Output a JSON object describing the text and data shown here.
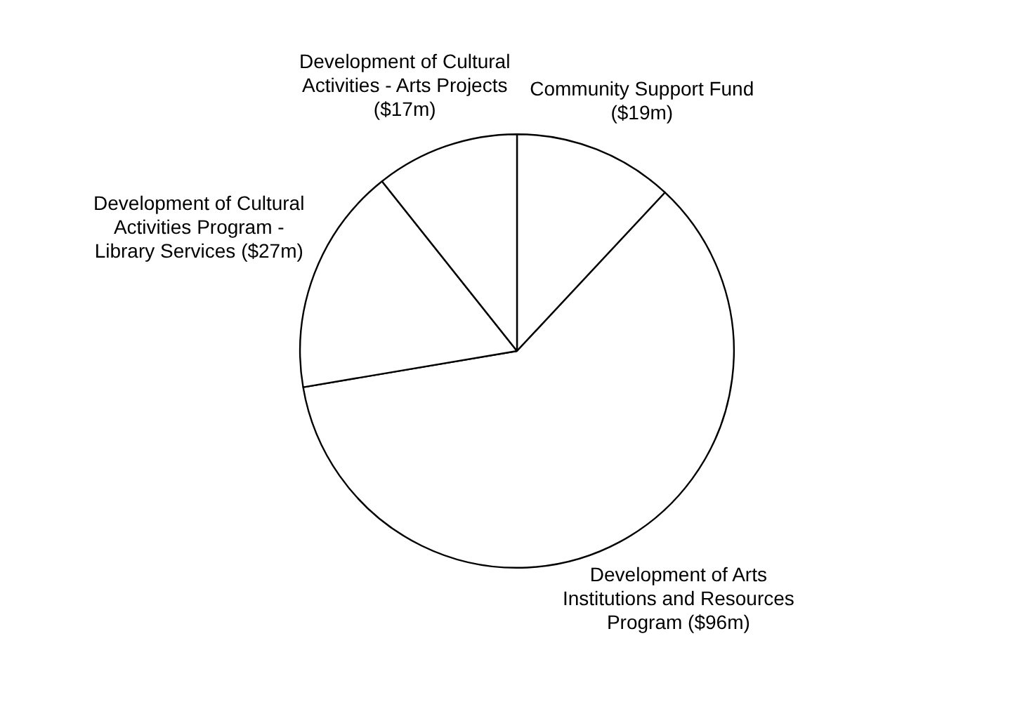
{
  "chart_data": {
    "type": "pie",
    "categories": [
      "Community Support Fund",
      "Development of Arts Institutions and Resources Program",
      "Development of Cultural Activities Program - Library Services",
      "Development of Cultural Activities - Arts Projects"
    ],
    "values": [
      19,
      96,
      27,
      17
    ],
    "value_labels": [
      "($19m)",
      "($96m)",
      "($27m)",
      "($17m)"
    ],
    "colors": [
      "#ffffff",
      "#ffffff",
      "#ffffff",
      "#ffffff"
    ],
    "legend": false
  }
}
